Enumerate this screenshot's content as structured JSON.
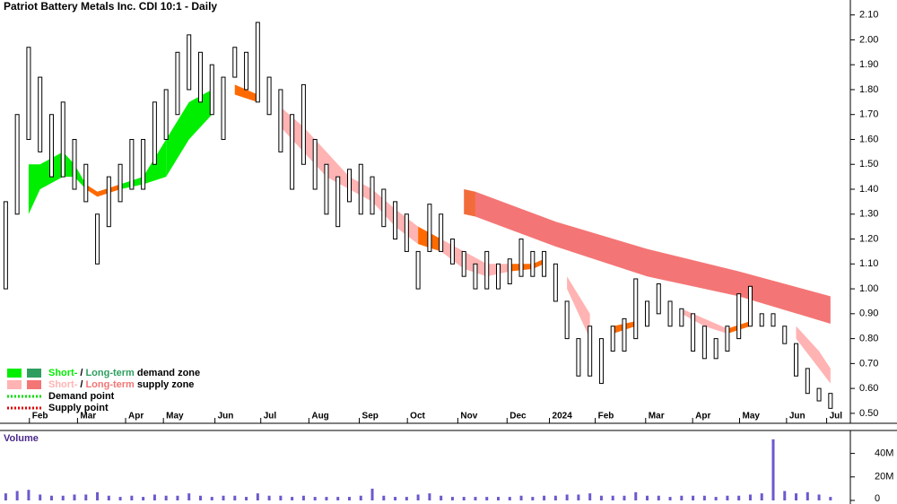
{
  "chart_data": {
    "type": "ohlc",
    "title": "Patriot Battery Metals Inc. CDI 10:1 - Daily",
    "xlim": [
      -0.5,
      73.5
    ],
    "xticks": [
      {
        "value": 2.3,
        "label": "Feb"
      },
      {
        "value": 6.5,
        "label": "Mar"
      },
      {
        "value": 10.7,
        "label": "Apr"
      },
      {
        "value": 14,
        "label": "May"
      },
      {
        "value": 18.5,
        "label": "Jun"
      },
      {
        "value": 22.5,
        "label": "Jul"
      },
      {
        "value": 26.7,
        "label": "Aug"
      },
      {
        "value": 31.1,
        "label": "Sep"
      },
      {
        "value": 35.3,
        "label": "Oct"
      },
      {
        "value": 39.7,
        "label": "Nov"
      },
      {
        "value": 44,
        "label": "Dec"
      },
      {
        "value": 47.7,
        "label": "2024"
      },
      {
        "value": 51.7,
        "label": "Feb"
      },
      {
        "value": 56.1,
        "label": "Mar"
      },
      {
        "value": 60.2,
        "label": "Apr"
      },
      {
        "value": 64.3,
        "label": "May"
      },
      {
        "value": 68.4,
        "label": "Jun"
      },
      {
        "value": 71.9,
        "label": "Jul"
      }
    ],
    "ylim": [
      0.46,
      2.16
    ],
    "yticks": [
      {
        "value": 0.5,
        "label": "0.50"
      },
      {
        "value": 0.6,
        "label": "0.60"
      },
      {
        "value": 0.7,
        "label": "0.70"
      },
      {
        "value": 0.8,
        "label": "0.80"
      },
      {
        "value": 0.9,
        "label": "0.90"
      },
      {
        "value": 1.0,
        "label": "1.00"
      },
      {
        "value": 1.1,
        "label": "1.10"
      },
      {
        "value": 1.2,
        "label": "1.20"
      },
      {
        "value": 1.3,
        "label": "1.30"
      },
      {
        "value": 1.4,
        "label": "1.40"
      },
      {
        "value": 1.5,
        "label": "1.50"
      },
      {
        "value": 1.6,
        "label": "1.60"
      },
      {
        "value": 1.7,
        "label": "1.70"
      },
      {
        "value": 1.8,
        "label": "1.80"
      },
      {
        "value": 1.9,
        "label": "1.90"
      },
      {
        "value": 2.0,
        "label": "2.00"
      },
      {
        "value": 2.1,
        "label": "2.10"
      }
    ],
    "high": [
      1.35,
      1.7,
      1.97,
      1.85,
      1.7,
      1.75,
      1.6,
      1.5,
      1.3,
      1.45,
      1.5,
      1.6,
      1.6,
      1.75,
      1.8,
      1.95,
      2.02,
      1.95,
      1.9,
      1.85,
      1.97,
      1.95,
      2.07,
      1.85,
      1.8,
      1.7,
      1.82,
      1.6,
      1.5,
      1.45,
      1.48,
      1.5,
      1.45,
      1.4,
      1.35,
      1.3,
      1.15,
      1.34,
      1.3,
      1.2,
      1.15,
      1.1,
      1.15,
      1.1,
      1.12,
      1.2,
      1.15,
      1.15,
      1.1,
      0.95,
      0.8,
      0.85,
      0.8,
      0.85,
      0.88,
      1.04,
      0.95,
      1.02,
      0.95,
      0.92,
      0.9,
      0.85,
      0.8,
      0.85,
      0.98,
      1.01,
      0.9,
      0.9,
      0.85,
      0.78,
      0.68,
      0.6,
      0.58
    ],
    "low": [
      1.0,
      1.3,
      1.6,
      1.55,
      1.45,
      1.45,
      1.4,
      1.35,
      1.1,
      1.25,
      1.35,
      1.4,
      1.4,
      1.5,
      1.6,
      1.7,
      1.8,
      1.75,
      1.7,
      1.6,
      1.85,
      1.8,
      1.75,
      1.7,
      1.55,
      1.4,
      1.5,
      1.4,
      1.3,
      1.25,
      1.35,
      1.3,
      1.3,
      1.25,
      1.2,
      1.15,
      1.0,
      1.15,
      1.15,
      1.1,
      1.05,
      1.0,
      1.0,
      1.0,
      1.02,
      1.05,
      1.05,
      1.05,
      0.95,
      0.8,
      0.65,
      0.65,
      0.62,
      0.75,
      0.75,
      0.8,
      0.85,
      0.9,
      0.85,
      0.85,
      0.75,
      0.72,
      0.72,
      0.75,
      0.8,
      0.85,
      0.85,
      0.85,
      0.78,
      0.65,
      0.58,
      0.55,
      0.52
    ],
    "short_zone": {
      "x": [
        0,
        2,
        3,
        5,
        6,
        7,
        8,
        10,
        12,
        14,
        16,
        18,
        20,
        22,
        24,
        26,
        28,
        30,
        32,
        34,
        36,
        38,
        40,
        42,
        44,
        46,
        47,
        49,
        51,
        53,
        55,
        57,
        59,
        61,
        63,
        65,
        67,
        69,
        71,
        72
      ],
      "upper": [
        1.2,
        1.5,
        1.5,
        1.55,
        1.5,
        1.42,
        1.39,
        1.42,
        1.45,
        1.6,
        1.75,
        1.8,
        1.82,
        1.78,
        1.73,
        1.65,
        1.55,
        1.45,
        1.4,
        1.32,
        1.25,
        1.2,
        1.15,
        1.1,
        1.1,
        1.1,
        1.12,
        1.05,
        0.9,
        0.85,
        0.87,
        0.92,
        0.92,
        0.88,
        0.84,
        0.87,
        0.88,
        0.85,
        0.75,
        0.68
      ],
      "lower": [
        1.0,
        1.3,
        1.4,
        1.45,
        1.45,
        1.4,
        1.37,
        1.4,
        1.42,
        1.45,
        1.6,
        1.7,
        1.78,
        1.75,
        1.65,
        1.55,
        1.45,
        1.4,
        1.35,
        1.25,
        1.18,
        1.15,
        1.08,
        1.05,
        1.07,
        1.08,
        1.1,
        1.0,
        0.8,
        0.82,
        0.85,
        0.9,
        0.9,
        0.85,
        0.82,
        0.85,
        0.87,
        0.8,
        0.68,
        0.62
      ],
      "segments": [
        {
          "from": 0,
          "to": 1,
          "color": "#ff6a00"
        },
        {
          "from": 1,
          "to": 7,
          "color": "#00ee00"
        },
        {
          "from": 7,
          "to": 10,
          "color": "#ff6a00"
        },
        {
          "from": 10,
          "to": 14,
          "color": "#00ee00"
        },
        {
          "from": 14,
          "to": 19,
          "color": "#00ee00"
        },
        {
          "from": 19,
          "to": 23,
          "color": "#ff6a00"
        },
        {
          "from": 23,
          "to": 36,
          "color": "#ffb3b3"
        },
        {
          "from": 36,
          "to": 38,
          "color": "#ff6a00"
        },
        {
          "from": 38,
          "to": 44,
          "color": "#ffb3b3"
        },
        {
          "from": 44,
          "to": 48,
          "color": "#ff6a00"
        },
        {
          "from": 48,
          "to": 52,
          "color": "#ffb3b3"
        },
        {
          "from": 52,
          "to": 56,
          "color": "#ff6a00"
        },
        {
          "from": 56,
          "to": 58,
          "color": "#00ee00"
        },
        {
          "from": 58,
          "to": 63,
          "color": "#ffb3b3"
        },
        {
          "from": 63,
          "to": 66,
          "color": "#ff6a00"
        },
        {
          "from": 66,
          "to": 68,
          "color": "#00ee00"
        },
        {
          "from": 68,
          "to": 72,
          "color": "#ffb3b3"
        }
      ]
    },
    "long_zone": {
      "x": [
        40,
        41,
        48,
        56,
        64,
        72
      ],
      "upper": [
        1.4,
        1.39,
        1.27,
        1.16,
        1.07,
        0.97
      ],
      "lower": [
        1.3,
        1.29,
        1.17,
        1.05,
        0.97,
        0.86
      ],
      "segments": [
        {
          "from": 40,
          "to": 41,
          "color": "#f26b3a"
        },
        {
          "from": 41,
          "to": 72,
          "color": "#f47575"
        }
      ]
    },
    "legend": [
      {
        "short": "Short-",
        "sep": "/",
        "long": "Long-term",
        "rest": "demand zone",
        "colors": [
          "#00ee00",
          "#2e9e5e"
        ]
      },
      {
        "short": "Short-",
        "sep": "/",
        "long": "Long-term",
        "rest": "supply zone",
        "colors": [
          "#ffb3b3",
          "#f47575"
        ]
      },
      {
        "label": "Demand point",
        "color": "#00dd00"
      },
      {
        "label": "Supply point",
        "color": "#e00000"
      }
    ],
    "volume": {
      "label": "Volume",
      "color": "#6a5acd",
      "ylim": [
        0,
        58
      ],
      "yticks": [
        0,
        {
          "value": 20,
          "label": "20M"
        },
        {
          "value": 40,
          "label": "40M"
        }
      ],
      "values": [
        6,
        8,
        9,
        5,
        4,
        4,
        5,
        5,
        7,
        4,
        3,
        4,
        3,
        5,
        4,
        4,
        6,
        4,
        3,
        4,
        4,
        3,
        6,
        4,
        4,
        3,
        4,
        3,
        3,
        3,
        3,
        4,
        10,
        4,
        3,
        3,
        5,
        6,
        4,
        3,
        3,
        3,
        3,
        3,
        3,
        4,
        3,
        4,
        4,
        5,
        5,
        6,
        4,
        4,
        4,
        7,
        4,
        4,
        3,
        4,
        4,
        4,
        3,
        4,
        4,
        5,
        6,
        52,
        8,
        6,
        7,
        5,
        3
      ]
    }
  }
}
